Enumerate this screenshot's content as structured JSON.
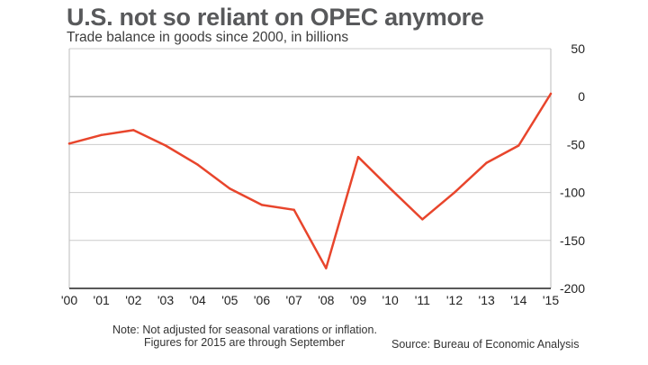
{
  "header": {
    "title": "U.S. not so reliant on OPEC anymore",
    "subtitle": "Trade balance in goods since 2000, in billions"
  },
  "footer": {
    "note_line1": "Note: Not adjusted for seasonal varations or inflation.",
    "note_line2": "Figures for 2015 are through September",
    "source": "Source: Bureau of Economic Analysis"
  },
  "colors": {
    "line": "#e8452c",
    "grid": "#cccccc",
    "zero_line": "#999999",
    "frame": "#bbbbbb"
  },
  "chart_data": {
    "type": "line",
    "title": "U.S. not so reliant on OPEC anymore",
    "subtitle": "Trade balance in goods since 2000, in billions",
    "categories": [
      "'00",
      "'01",
      "'02",
      "'03",
      "'04",
      "'05",
      "'06",
      "'07",
      "'08",
      "'09",
      "'10",
      "'11",
      "'12",
      "'13",
      "'14",
      "'15"
    ],
    "values": [
      -49,
      -40,
      -35,
      -51,
      -71,
      -96,
      -113,
      -118,
      -179,
      -63,
      -96,
      -128,
      -100,
      -69,
      -51,
      3
    ],
    "y_ticks": [
      50,
      0,
      -50,
      -100,
      -150,
      -200
    ],
    "y_tick_labels": [
      "50",
      "0",
      "-50",
      "-100",
      "-150",
      "-200"
    ],
    "ylim": [
      -200,
      50
    ],
    "y_axis_side": "right",
    "grid": true
  }
}
